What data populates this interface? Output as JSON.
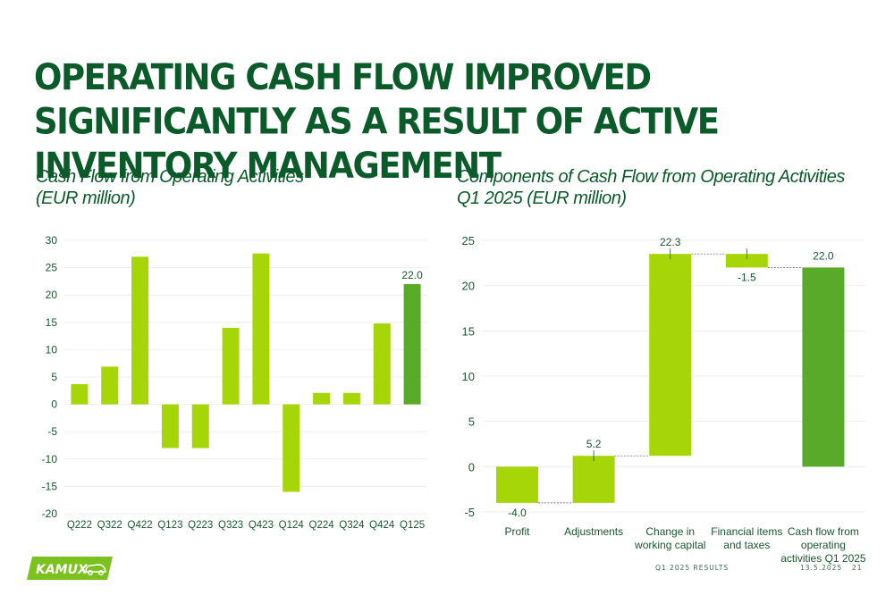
{
  "title": "Operating cash flow improved significantly as a result of active inventory management",
  "left_subtitle": {
    "line1": "Cash Flow from Operating Activities",
    "line2": "(EUR million)"
  },
  "right_subtitle": {
    "line1": "Components of Cash Flow from Operating Activities",
    "line2": "Q1 2025 (EUR million)"
  },
  "footer": {
    "title": "Q1 2025 RESULTS",
    "date": "13.5.2025",
    "page": "21"
  },
  "logo": {
    "text": "KAMUX",
    "icon": "car-icon"
  },
  "colors": {
    "light_green": "#a6d608",
    "dark_green": "#5aaa2a",
    "title_green": "#0b5a2a",
    "grid": "#eeeeee"
  },
  "chart_data": [
    {
      "type": "bar",
      "categories": [
        "Q222",
        "Q322",
        "Q422",
        "Q123",
        "Q223",
        "Q323",
        "Q423",
        "Q124",
        "Q224",
        "Q324",
        "Q424",
        "Q125"
      ],
      "values": [
        3.7,
        6.9,
        27.0,
        -8.0,
        -8.0,
        14.0,
        27.6,
        -16.0,
        2.1,
        2.1,
        14.8,
        22.0
      ],
      "highlight_index": 11,
      "data_labels": {
        "11": "22.0"
      },
      "yticks": [
        "30",
        "25",
        "20",
        "15",
        "10",
        "5",
        "0",
        "-5",
        "-10",
        "-15",
        "-20"
      ],
      "ylim": [
        -20,
        30
      ],
      "grid": true
    },
    {
      "type": "waterfall",
      "categories": [
        "Profit",
        "Adjustments",
        "Change in working capital",
        "Financial items and taxes",
        "Cash flow from operating activities Q1 2025"
      ],
      "category_lines": [
        [
          "Profit"
        ],
        [
          "Adjustments"
        ],
        [
          "Change in",
          "working capital"
        ],
        [
          "Financial items",
          "and taxes"
        ],
        [
          "Cash flow from",
          "operating",
          "activities Q1 2025"
        ]
      ],
      "values": [
        -4.0,
        5.2,
        22.3,
        -1.5,
        22.0
      ],
      "labels": [
        "-4.0",
        "5.2",
        "22.3",
        "-1.5",
        "22.0"
      ],
      "total_index": 4,
      "yticks": [
        "25",
        "20",
        "15",
        "10",
        "5",
        "0",
        "-5"
      ],
      "ylim": [
        -5,
        25
      ],
      "grid": true
    }
  ]
}
